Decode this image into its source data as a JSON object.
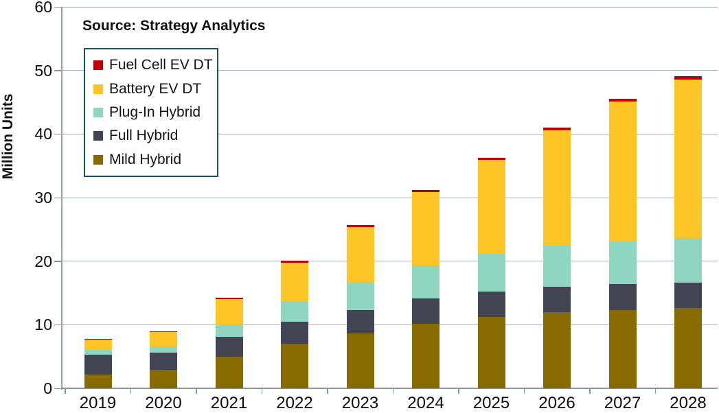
{
  "chart_data": {
    "type": "bar",
    "stacked": true,
    "source": "Source: Strategy Analytics",
    "ylabel": "Million Units",
    "xlabel": "",
    "ylim": [
      0,
      60
    ],
    "yticks": [
      0,
      10,
      20,
      30,
      40,
      50,
      60
    ],
    "grid": true,
    "legend_position": "upper-left",
    "categories": [
      "2019",
      "2020",
      "2021",
      "2022",
      "2023",
      "2024",
      "2025",
      "2026",
      "2027",
      "2028"
    ],
    "series": [
      {
        "name": "Mild Hybrid",
        "color": "#876a00",
        "values": [
          2.2,
          2.9,
          5.0,
          7.0,
          8.6,
          10.1,
          11.2,
          12.0,
          12.3,
          12.6
        ]
      },
      {
        "name": "Full Hybrid",
        "color": "#424551",
        "values": [
          3.1,
          2.7,
          3.1,
          3.5,
          3.7,
          4.0,
          4.0,
          4.0,
          4.1,
          4.0
        ]
      },
      {
        "name": "Plug-In Hybrid",
        "color": "#90d5c0",
        "values": [
          0.7,
          0.95,
          1.9,
          3.2,
          4.4,
          5.2,
          5.9,
          6.4,
          6.7,
          7.0
        ]
      },
      {
        "name": "Battery EV DT",
        "color": "#fdc525",
        "values": [
          1.8,
          2.35,
          4.0,
          6.1,
          8.7,
          11.6,
          14.8,
          18.2,
          22.0,
          25.0
        ]
      },
      {
        "name": "Fuel Cell EV DT",
        "color": "#c00000",
        "values": [
          0.02,
          0.03,
          0.2,
          0.25,
          0.3,
          0.3,
          0.4,
          0.45,
          0.45,
          0.5
        ]
      }
    ],
    "totals": [
      7.8,
      8.9,
      14.2,
      20.1,
      25.7,
      31.2,
      36.3,
      41.1,
      45.5,
      49.1
    ],
    "legend_order_top_to_bottom": [
      "Fuel Cell EV DT",
      "Battery EV DT",
      "Plug-In Hybrid",
      "Full Hybrid",
      "Mild Hybrid"
    ],
    "colors": {
      "gridline": "#a7aeb4",
      "axis": "#8c959d",
      "legend_border": "#1d4e5c",
      "text": "#121219"
    }
  }
}
